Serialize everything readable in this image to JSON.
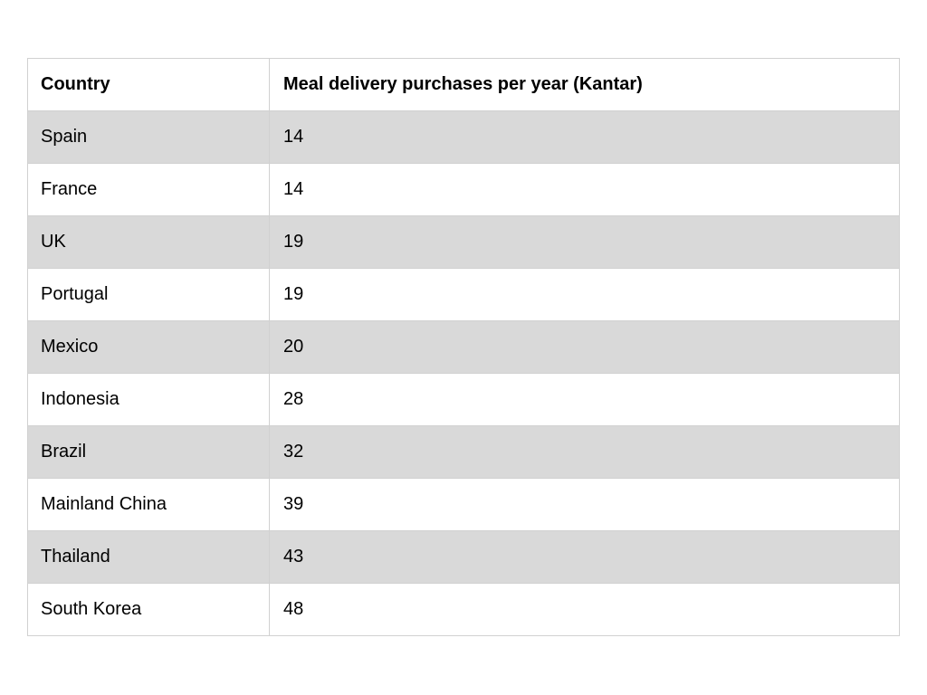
{
  "table": {
    "columns": [
      "Country",
      "Meal delivery purchases per year (Kantar)"
    ],
    "rows": [
      {
        "country": "Spain",
        "value": "14"
      },
      {
        "country": "France",
        "value": "14"
      },
      {
        "country": "UK",
        "value": "19"
      },
      {
        "country": "Portugal",
        "value": "19"
      },
      {
        "country": "Mexico",
        "value": "20"
      },
      {
        "country": "Indonesia",
        "value": "28"
      },
      {
        "country": "Brazil",
        "value": "32"
      },
      {
        "country": "Mainland China",
        "value": "39"
      },
      {
        "country": "Thailand",
        "value": "43"
      },
      {
        "country": "South Korea",
        "value": "48"
      }
    ]
  },
  "chart_data": {
    "type": "table",
    "title": "Meal delivery purchases per year (Kantar)",
    "columns": [
      "Country",
      "Meal delivery purchases per year (Kantar)"
    ],
    "categories": [
      "Spain",
      "France",
      "UK",
      "Portugal",
      "Mexico",
      "Indonesia",
      "Brazil",
      "Mainland China",
      "Thailand",
      "South Korea"
    ],
    "values": [
      14,
      14,
      19,
      19,
      20,
      28,
      32,
      39,
      43,
      48
    ]
  },
  "colors": {
    "page_bg": "#ffffff",
    "row_bg": "#ffffff",
    "row_alt_bg": "#d9d9d9",
    "border": "#d1d1d1",
    "text": "#000000"
  }
}
